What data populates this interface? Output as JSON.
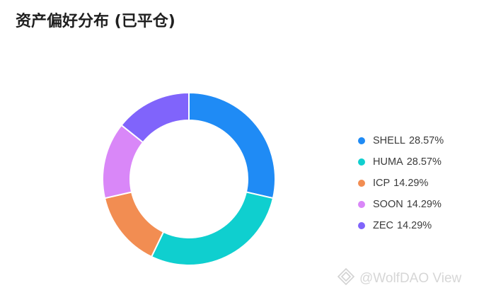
{
  "title": "资产偏好分布 (已平仓)",
  "chart_data": {
    "type": "pie",
    "title": "资产偏好分布 (已平仓)",
    "categories": [
      "SHELL",
      "HUMA",
      "ICP",
      "SOON",
      "ZEC"
    ],
    "values": [
      28.57,
      28.57,
      14.29,
      14.29,
      14.29
    ],
    "value_labels": [
      "28.57%",
      "28.57%",
      "14.29%",
      "14.29%",
      "14.29%"
    ],
    "colors": [
      "#1f8bf5",
      "#0fcfcf",
      "#f28d52",
      "#d987f8",
      "#8064fb"
    ],
    "donut": true,
    "legend_position": "right"
  },
  "watermark": "@WolfDAO View"
}
